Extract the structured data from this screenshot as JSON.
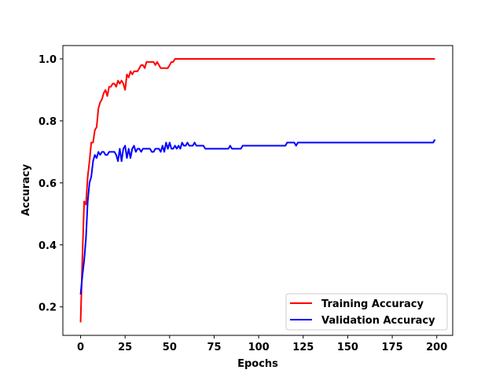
{
  "chart_data": {
    "type": "line",
    "title": "",
    "xlabel": "Epochs",
    "ylabel": "Accuracy",
    "xlim": [
      -9.95,
      208.95
    ],
    "ylim": [
      0.108,
      1.043
    ],
    "x_ticks": [
      "0",
      "25",
      "50",
      "75",
      "100",
      "125",
      "150",
      "175",
      "200"
    ],
    "y_ticks": [
      "0.2",
      "0.4",
      "0.6",
      "0.8",
      "1.0"
    ],
    "grid": false,
    "legend_position": "lower-right",
    "series": [
      {
        "name": "Training Accuracy",
        "color": "#ff0000",
        "points": [
          [
            0,
            0.15
          ],
          [
            1,
            0.36
          ],
          [
            2,
            0.54
          ],
          [
            3,
            0.53
          ],
          [
            4,
            0.62
          ],
          [
            5,
            0.67
          ],
          [
            6,
            0.73
          ],
          [
            7,
            0.73
          ],
          [
            8,
            0.77
          ],
          [
            9,
            0.78
          ],
          [
            10,
            0.84
          ],
          [
            11,
            0.86
          ],
          [
            12,
            0.87
          ],
          [
            13,
            0.89
          ],
          [
            14,
            0.9
          ],
          [
            15,
            0.88
          ],
          [
            16,
            0.91
          ],
          [
            17,
            0.91
          ],
          [
            18,
            0.92
          ],
          [
            19,
            0.92
          ],
          [
            20,
            0.91
          ],
          [
            21,
            0.93
          ],
          [
            22,
            0.92
          ],
          [
            23,
            0.93
          ],
          [
            24,
            0.92
          ],
          [
            25,
            0.9
          ],
          [
            26,
            0.95
          ],
          [
            27,
            0.94
          ],
          [
            28,
            0.96
          ],
          [
            29,
            0.95
          ],
          [
            30,
            0.96
          ],
          [
            31,
            0.96
          ],
          [
            32,
            0.96
          ],
          [
            33,
            0.97
          ],
          [
            34,
            0.98
          ],
          [
            35,
            0.98
          ],
          [
            36,
            0.97
          ],
          [
            37,
            0.99
          ],
          [
            38,
            0.99
          ],
          [
            39,
            0.99
          ],
          [
            40,
            0.99
          ],
          [
            41,
            0.99
          ],
          [
            42,
            0.98
          ],
          [
            43,
            0.99
          ],
          [
            44,
            0.98
          ],
          [
            45,
            0.97
          ],
          [
            46,
            0.97
          ],
          [
            47,
            0.97
          ],
          [
            48,
            0.97
          ],
          [
            49,
            0.97
          ],
          [
            50,
            0.98
          ],
          [
            51,
            0.99
          ],
          [
            52,
            0.99
          ],
          [
            53,
            1.0
          ],
          [
            54,
            1.0
          ],
          [
            60,
            1.0
          ],
          [
            80,
            1.0
          ],
          [
            100,
            1.0
          ],
          [
            120,
            1.0
          ],
          [
            140,
            1.0
          ],
          [
            160,
            1.0
          ],
          [
            180,
            1.0
          ],
          [
            199,
            1.0
          ]
        ]
      },
      {
        "name": "Validation Accuracy",
        "color": "#0000ff",
        "points": [
          [
            0,
            0.24
          ],
          [
            1,
            0.3
          ],
          [
            2,
            0.35
          ],
          [
            3,
            0.42
          ],
          [
            4,
            0.54
          ],
          [
            5,
            0.6
          ],
          [
            6,
            0.62
          ],
          [
            7,
            0.67
          ],
          [
            8,
            0.69
          ],
          [
            9,
            0.68
          ],
          [
            10,
            0.7
          ],
          [
            11,
            0.69
          ],
          [
            12,
            0.7
          ],
          [
            13,
            0.7
          ],
          [
            14,
            0.69
          ],
          [
            15,
            0.69
          ],
          [
            16,
            0.7
          ],
          [
            17,
            0.7
          ],
          [
            18,
            0.7
          ],
          [
            19,
            0.7
          ],
          [
            20,
            0.69
          ],
          [
            21,
            0.67
          ],
          [
            22,
            0.71
          ],
          [
            23,
            0.67
          ],
          [
            24,
            0.71
          ],
          [
            25,
            0.72
          ],
          [
            26,
            0.68
          ],
          [
            27,
            0.71
          ],
          [
            28,
            0.68
          ],
          [
            29,
            0.71
          ],
          [
            30,
            0.72
          ],
          [
            31,
            0.7
          ],
          [
            32,
            0.71
          ],
          [
            33,
            0.71
          ],
          [
            34,
            0.7
          ],
          [
            35,
            0.71
          ],
          [
            36,
            0.71
          ],
          [
            37,
            0.71
          ],
          [
            38,
            0.71
          ],
          [
            39,
            0.71
          ],
          [
            40,
            0.7
          ],
          [
            41,
            0.7
          ],
          [
            42,
            0.71
          ],
          [
            43,
            0.71
          ],
          [
            44,
            0.71
          ],
          [
            45,
            0.7
          ],
          [
            46,
            0.72
          ],
          [
            47,
            0.7
          ],
          [
            48,
            0.73
          ],
          [
            49,
            0.71
          ],
          [
            50,
            0.73
          ],
          [
            51,
            0.71
          ],
          [
            52,
            0.71
          ],
          [
            53,
            0.72
          ],
          [
            54,
            0.71
          ],
          [
            55,
            0.72
          ],
          [
            56,
            0.71
          ],
          [
            57,
            0.73
          ],
          [
            58,
            0.72
          ],
          [
            59,
            0.72
          ],
          [
            60,
            0.73
          ],
          [
            61,
            0.72
          ],
          [
            62,
            0.72
          ],
          [
            63,
            0.72
          ],
          [
            64,
            0.73
          ],
          [
            65,
            0.72
          ],
          [
            66,
            0.72
          ],
          [
            67,
            0.72
          ],
          [
            68,
            0.72
          ],
          [
            69,
            0.72
          ],
          [
            70,
            0.71
          ],
          [
            75,
            0.71
          ],
          [
            80,
            0.71
          ],
          [
            83,
            0.71
          ],
          [
            84,
            0.72
          ],
          [
            85,
            0.71
          ],
          [
            90,
            0.71
          ],
          [
            91,
            0.72
          ],
          [
            100,
            0.72
          ],
          [
            110,
            0.72
          ],
          [
            115,
            0.72
          ],
          [
            116,
            0.73
          ],
          [
            120,
            0.73
          ],
          [
            121,
            0.72
          ],
          [
            122,
            0.73
          ],
          [
            130,
            0.73
          ],
          [
            140,
            0.73
          ],
          [
            150,
            0.73
          ],
          [
            160,
            0.73
          ],
          [
            170,
            0.73
          ],
          [
            180,
            0.73
          ],
          [
            190,
            0.73
          ],
          [
            197,
            0.73
          ],
          [
            198,
            0.73
          ],
          [
            199,
            0.74
          ]
        ]
      }
    ]
  }
}
